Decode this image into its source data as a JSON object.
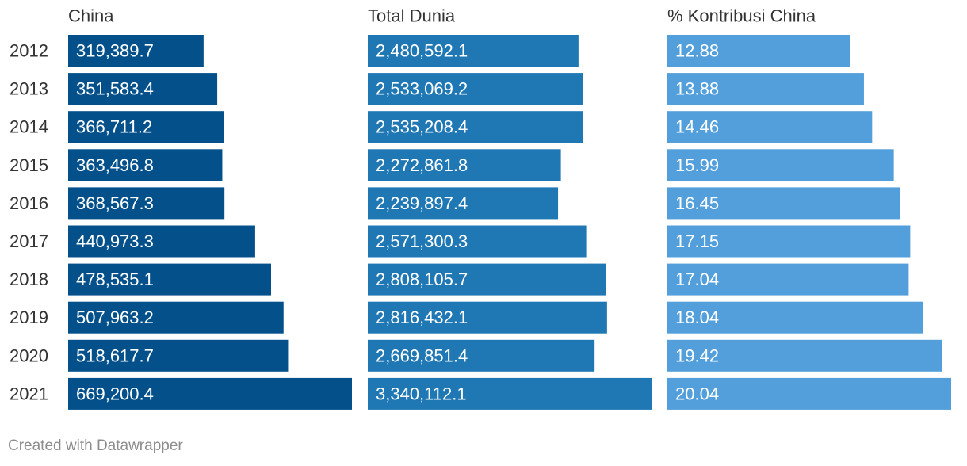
{
  "chart_data": {
    "type": "bar",
    "categories": [
      "2012",
      "2013",
      "2014",
      "2015",
      "2016",
      "2017",
      "2018",
      "2019",
      "2020",
      "2021"
    ],
    "series": [
      {
        "name": "China",
        "color": "#04508b",
        "values": [
          319389.7,
          351583.4,
          366711.2,
          363496.8,
          368567.3,
          440973.3,
          478535.1,
          507963.2,
          518617.7,
          669200.4
        ],
        "labels": [
          "319,389.7",
          "351,583.4",
          "366,711.2",
          "363,496.8",
          "368,567.3",
          "440,973.3",
          "478,535.1",
          "507,963.2",
          "518,617.7",
          "669,200.4"
        ]
      },
      {
        "name": "Total Dunia",
        "color": "#1f77b4",
        "values": [
          2480592.1,
          2533069.2,
          2535208.4,
          2272861.8,
          2239897.4,
          2571300.3,
          2808105.7,
          2816432.1,
          2669851.4,
          3340112.1
        ],
        "labels": [
          "2,480,592.1",
          "2,533,069.2",
          "2,535,208.4",
          "2,272,861.8",
          "2,239,897.4",
          "2,571,300.3",
          "2,808,105.7",
          "2,816,432.1",
          "2,669,851.4",
          "3,340,112.1"
        ]
      },
      {
        "name": "% Kontribusi China",
        "color": "#529fdb",
        "values": [
          12.88,
          13.88,
          14.46,
          15.99,
          16.45,
          17.15,
          17.04,
          18.04,
          19.42,
          20.04
        ],
        "labels": [
          "12.88",
          "13.88",
          "14.46",
          "15.99",
          "16.45",
          "17.15",
          "17.04",
          "18.04",
          "19.42",
          "20.04"
        ]
      }
    ]
  },
  "footer": "Created with Datawrapper"
}
